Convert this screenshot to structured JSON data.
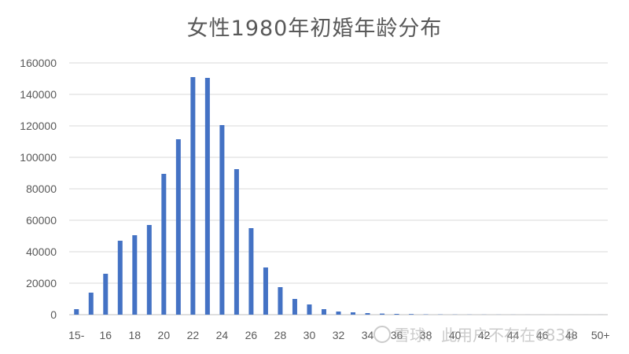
{
  "chart_data": {
    "type": "bar",
    "title": "女性1980年初婚年龄分布",
    "xlabel": "",
    "ylabel": "",
    "ylim": [
      0,
      160000
    ],
    "y_ticks": [
      0,
      20000,
      40000,
      60000,
      80000,
      100000,
      120000,
      140000,
      160000
    ],
    "y_tick_labels": [
      "0",
      "20000",
      "40000",
      "60000",
      "80000",
      "100000",
      "120000",
      "140000",
      "160000"
    ],
    "grid": true,
    "legend": "none",
    "bar_color": "#4472c4",
    "categories": [
      "15-",
      "15",
      "16",
      "17",
      "18",
      "19",
      "20",
      "21",
      "22",
      "23",
      "24",
      "25",
      "26",
      "27",
      "28",
      "29",
      "30",
      "31",
      "32",
      "33",
      "34",
      "35",
      "36",
      "37",
      "38",
      "39",
      "40",
      "41",
      "42",
      "43",
      "44",
      "45",
      "46",
      "47",
      "48",
      "49",
      "50+"
    ],
    "x_tick_labels": [
      "15-",
      "16",
      "18",
      "20",
      "22",
      "24",
      "26",
      "28",
      "30",
      "32",
      "34",
      "36",
      "38",
      "40",
      "42",
      "44",
      "46",
      "48",
      "50+"
    ],
    "values": [
      3500,
      14000,
      26000,
      47000,
      50500,
      57000,
      89500,
      111500,
      151000,
      150500,
      120500,
      92500,
      55000,
      30000,
      17500,
      10000,
      6500,
      3500,
      2000,
      1500,
      1000,
      700,
      500,
      400,
      200,
      150,
      100,
      80,
      60,
      50,
      40,
      30,
      20,
      15,
      10,
      10,
      20
    ]
  },
  "watermark": {
    "text": "雪球：此用户不存在6838"
  }
}
